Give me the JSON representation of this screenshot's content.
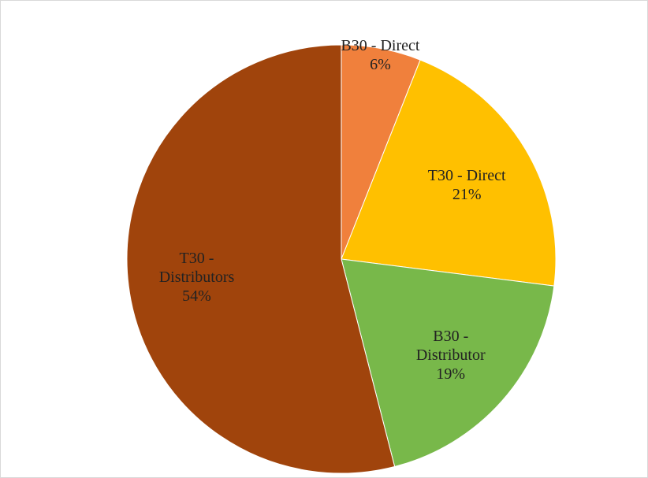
{
  "chart_data": {
    "type": "pie",
    "categories": [
      "B30 - Direct",
      "T30 - Direct",
      "B30 - Distributor",
      "T30 - Distributors"
    ],
    "values": [
      6,
      21,
      19,
      54
    ],
    "value_labels": [
      "6%",
      "21%",
      "19%",
      "54%"
    ],
    "colors": [
      "#f0803c",
      "#ffc000",
      "#78b84a",
      "#a0440c"
    ]
  }
}
